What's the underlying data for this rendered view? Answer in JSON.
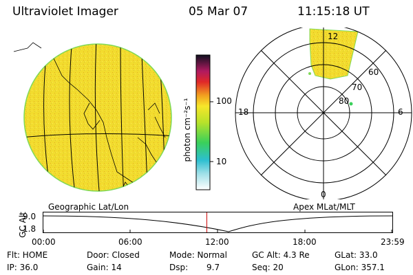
{
  "header": {
    "title": "Ultraviolet Imager",
    "date": "05 Mar 07",
    "time": "11:15:18 UT"
  },
  "colorbar": {
    "label": "photon cm⁻²s⁻¹",
    "ticks": [
      "100",
      "10"
    ]
  },
  "geo_panel": {
    "label": "Geographic Lat/Lon"
  },
  "polar_panel": {
    "label": "Apex MLat/MLT",
    "mlt_labels": {
      "top": "12",
      "left": "18",
      "right": "6",
      "bottom": "0"
    },
    "lat_labels": [
      "60",
      "70",
      "80"
    ]
  },
  "timeline": {
    "ylabel": "GC Alt",
    "yticks": [
      "9.0",
      "1.8"
    ],
    "xticks": [
      "00:00",
      "06:00",
      "12:00",
      "18:00",
      "23:59"
    ],
    "marker_time_hours": 11.254,
    "marker_color": "#cc0000"
  },
  "status": {
    "flt": "Flt: HOME",
    "ip": "IP: 36.0",
    "door": "Door: Closed",
    "gain": "Gain: 14",
    "mode": "Mode: Normal",
    "dsp_label": "Dsp:",
    "dsp_value": "9.7",
    "gcalt": "GC Alt: 4.3 Re",
    "seq": "Seq: 20",
    "glat": "GLat:  33.0",
    "glon": "GLon: 357.1"
  },
  "colors": {
    "auroral_fill": "#f2dc2e",
    "limb": "#7ed957"
  }
}
